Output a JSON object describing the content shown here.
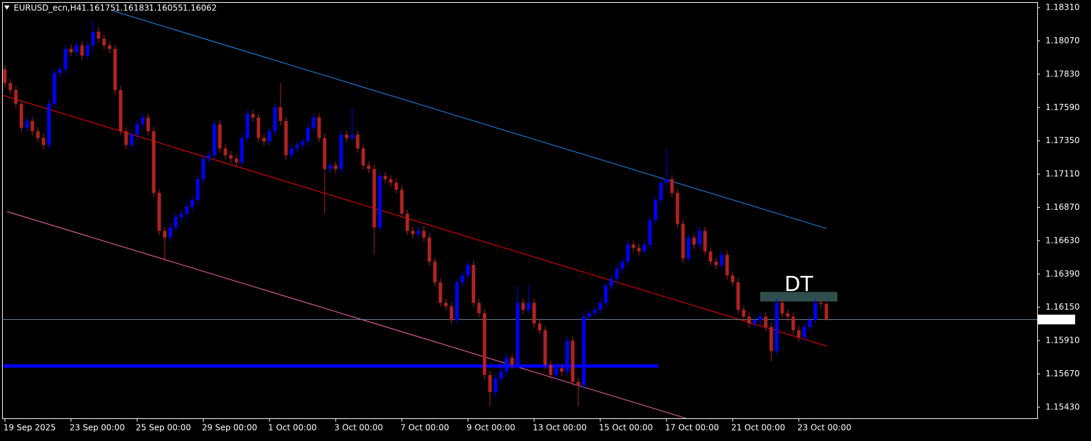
{
  "chart_data": {
    "type": "candlestick",
    "symbol": "EURUSD_ecn,H4",
    "up_color": "#0000ff",
    "down_color": "#b22222",
    "xlim": [
      -0.5,
      187.25
    ],
    "ylim": [
      1.1535,
      1.1835
    ],
    "xticks": [
      {
        "value": 0,
        "label": "19 Sep 2025"
      },
      {
        "value": 12,
        "label": "23 Sep 00:00"
      },
      {
        "value": 24,
        "label": "25 Sep 00:00"
      },
      {
        "value": 36,
        "label": "29 Sep 00:00"
      },
      {
        "value": 48,
        "label": "1 Oct 00:00"
      },
      {
        "value": 60,
        "label": "3 Oct 00:00"
      },
      {
        "value": 72,
        "label": "7 Oct 00:00"
      },
      {
        "value": 84,
        "label": "9 Oct 00:00"
      },
      {
        "value": 96,
        "label": "13 Oct 00:00"
      },
      {
        "value": 108,
        "label": "15 Oct 00:00"
      },
      {
        "value": 120,
        "label": "17 Oct 00:00"
      },
      {
        "value": 132,
        "label": "21 Oct 00:00"
      },
      {
        "value": 144,
        "label": "23 Oct 00:00"
      }
    ],
    "yticks": [
      {
        "value": 1.1831,
        "label": "1.18310"
      },
      {
        "value": 1.1807,
        "label": "1.18070"
      },
      {
        "value": 1.1783,
        "label": "1.17830"
      },
      {
        "value": 1.1759,
        "label": "1.17590"
      },
      {
        "value": 1.1735,
        "label": "1.17350"
      },
      {
        "value": 1.1711,
        "label": "1.17110"
      },
      {
        "value": 1.1687,
        "label": "1.16870"
      },
      {
        "value": 1.1663,
        "label": "1.16630"
      },
      {
        "value": 1.1639,
        "label": "1.16390"
      },
      {
        "value": 1.1615,
        "label": "1.16150"
      },
      {
        "value": 1.1591,
        "label": "1.15910"
      },
      {
        "value": 1.1567,
        "label": "1.15670"
      },
      {
        "value": 1.1543,
        "label": "1.15430"
      }
    ],
    "open": [
      1.17865,
      1.17766,
      1.17716,
      1.17617,
      1.17444,
      1.17493,
      1.17419,
      1.1737,
      1.1732,
      1.17617,
      1.1784,
      1.17865,
      1.18013,
      1.17988,
      1.18038,
      1.17964,
      1.18038,
      1.18137,
      1.18087,
      1.18038,
      1.18013,
      1.17716,
      1.17419,
      1.1732,
      1.17394,
      1.17469,
      1.17518,
      1.17419,
      1.16974,
      1.16701,
      1.16652,
      1.16726,
      1.168,
      1.16825,
      1.16875,
      1.16924,
      1.17073,
      1.17221,
      1.17246,
      1.17469,
      1.17295,
      1.17246,
      1.17221,
      1.17196,
      1.1737,
      1.17543,
      1.17518,
      1.1737,
      1.17345,
      1.17419,
      1.17592,
      1.17493,
      1.17246,
      1.17295,
      1.1732,
      1.17345,
      1.17444,
      1.17518,
      1.1737,
      1.17147,
      1.17172,
      1.17147,
      1.17394,
      1.1737,
      1.17394,
      1.17295,
      1.17172,
      1.17147,
      1.16726,
      1.17097,
      1.17073,
      1.17048,
      1.16998,
      1.16825,
      1.16701,
      1.16677,
      1.16701,
      1.16652,
      1.16479,
      1.1633,
      1.16182,
      1.16157,
      1.16058,
      1.1633,
      1.1638,
      1.16454,
      1.16182,
      1.16107,
      1.15662,
      1.15538,
      1.15637,
      1.15687,
      1.15786,
      1.15736,
      1.16182,
      1.16132,
      1.16182,
      1.16033,
      1.15984,
      1.15736,
      1.15662,
      1.15711,
      1.15687,
      1.15909,
      1.15612,
      1.15588,
      1.16083,
      1.16107,
      1.16132,
      1.16182,
      1.16305,
      1.16355,
      1.16429,
      1.16479,
      1.16602,
      1.16578,
      1.16553,
      1.16602,
      1.16776,
      1.16924,
      1.17048,
      1.17073,
      1.16974,
      1.16751,
      1.16503,
      1.16652,
      1.16602,
      1.16701,
      1.16553,
      1.16479,
      1.16454,
      1.16528,
      1.1638,
      1.1633,
      1.16132,
      1.16083,
      1.16033,
      1.16058,
      1.16083,
      1.16008,
      1.15835,
      1.16182,
      1.16107,
      1.16083,
      1.15984,
      1.15934,
      1.16008,
      1.16058,
      1.16182,
      1.16175
    ],
    "high": [
      1.17895,
      1.17796,
      1.17746,
      1.17647,
      1.17523,
      1.17523,
      1.17449,
      1.174,
      1.17647,
      1.1787,
      1.17895,
      1.18043,
      1.18043,
      1.18068,
      1.18068,
      1.18068,
      1.18211,
      1.18167,
      1.18117,
      1.18068,
      1.18043,
      1.17746,
      1.17449,
      1.17424,
      1.17499,
      1.17548,
      1.17548,
      1.17449,
      1.17004,
      1.16731,
      1.16756,
      1.1683,
      1.16855,
      1.16905,
      1.16954,
      1.17103,
      1.17251,
      1.17276,
      1.17499,
      1.17499,
      1.17325,
      1.17276,
      1.17251,
      1.174,
      1.17573,
      1.17573,
      1.17548,
      1.174,
      1.17449,
      1.17622,
      1.17766,
      1.17523,
      1.17325,
      1.1735,
      1.17375,
      1.17474,
      1.17548,
      1.17548,
      1.174,
      1.17202,
      1.17202,
      1.17424,
      1.17424,
      1.17592,
      1.17424,
      1.17325,
      1.17202,
      1.17177,
      1.17127,
      1.17127,
      1.17103,
      1.17078,
      1.17028,
      1.16855,
      1.16731,
      1.16731,
      1.16731,
      1.16682,
      1.16509,
      1.1636,
      1.16212,
      1.16187,
      1.1636,
      1.1641,
      1.16484,
      1.16484,
      1.16212,
      1.16137,
      1.15692,
      1.15667,
      1.15717,
      1.15816,
      1.15816,
      1.16305,
      1.16212,
      1.16305,
      1.16212,
      1.16063,
      1.16014,
      1.15766,
      1.15741,
      1.15741,
      1.15939,
      1.15939,
      1.15642,
      1.16113,
      1.16137,
      1.16162,
      1.16212,
      1.16335,
      1.16385,
      1.16459,
      1.16509,
      1.16632,
      1.16632,
      1.16608,
      1.16632,
      1.16806,
      1.16954,
      1.17078,
      1.17295,
      1.17103,
      1.17004,
      1.16781,
      1.16682,
      1.16682,
      1.16731,
      1.16731,
      1.16583,
      1.16509,
      1.16558,
      1.16558,
      1.1641,
      1.1636,
      1.16162,
      1.16113,
      1.16088,
      1.16113,
      1.16113,
      1.16038,
      1.16212,
      1.16212,
      1.16137,
      1.16113,
      1.16014,
      1.16038,
      1.16088,
      1.16212,
      1.16212,
      1.16183
    ],
    "low": [
      1.17736,
      1.17686,
      1.17587,
      1.17414,
      1.17414,
      1.17389,
      1.1734,
      1.1729,
      1.1729,
      1.17587,
      1.1781,
      1.17835,
      1.17958,
      1.17958,
      1.17934,
      1.17934,
      1.18008,
      1.18057,
      1.18008,
      1.17983,
      1.17686,
      1.17389,
      1.1729,
      1.1729,
      1.17364,
      1.17439,
      1.17389,
      1.16944,
      1.16671,
      1.16479,
      1.16622,
      1.16696,
      1.1677,
      1.16795,
      1.16845,
      1.16894,
      1.17043,
      1.17191,
      1.17216,
      1.17265,
      1.17216,
      1.17191,
      1.17166,
      1.17166,
      1.1734,
      1.17488,
      1.1734,
      1.17315,
      1.17315,
      1.17389,
      1.17463,
      1.17216,
      1.17216,
      1.17265,
      1.1729,
      1.17315,
      1.17414,
      1.1734,
      1.16825,
      1.17117,
      1.17117,
      1.17117,
      1.1734,
      1.1734,
      1.17265,
      1.17142,
      1.17117,
      1.16528,
      1.16696,
      1.17043,
      1.17018,
      1.16968,
      1.16795,
      1.16671,
      1.16647,
      1.16647,
      1.16622,
      1.16449,
      1.163,
      1.16152,
      1.16127,
      1.16028,
      1.16028,
      1.163,
      1.1635,
      1.16152,
      1.16077,
      1.15632,
      1.15436,
      1.15508,
      1.15607,
      1.15657,
      1.15706,
      1.15706,
      1.16102,
      1.16102,
      1.16003,
      1.15954,
      1.15706,
      1.15632,
      1.15632,
      1.15657,
      1.15657,
      1.15582,
      1.15436,
      1.15558,
      1.16053,
      1.16077,
      1.16102,
      1.16152,
      1.16275,
      1.16325,
      1.16399,
      1.16449,
      1.16548,
      1.16523,
      1.16523,
      1.16572,
      1.16746,
      1.16894,
      1.17018,
      1.16944,
      1.16721,
      1.16473,
      1.16473,
      1.16572,
      1.16572,
      1.16523,
      1.16449,
      1.16424,
      1.16424,
      1.1635,
      1.163,
      1.16102,
      1.16053,
      1.16003,
      1.16003,
      1.16028,
      1.15978,
      1.15761,
      1.15805,
      1.16077,
      1.16053,
      1.15954,
      1.15904,
      1.15904,
      1.15978,
      1.16028,
      1.16145,
      1.16055
    ],
    "close": [
      1.17766,
      1.17716,
      1.17617,
      1.17444,
      1.17493,
      1.17419,
      1.1737,
      1.1732,
      1.17617,
      1.1784,
      1.17865,
      1.18013,
      1.17988,
      1.18038,
      1.17964,
      1.18038,
      1.18137,
      1.18087,
      1.18038,
      1.18013,
      1.17716,
      1.17419,
      1.1732,
      1.17394,
      1.17469,
      1.17518,
      1.17419,
      1.16974,
      1.16701,
      1.16652,
      1.16726,
      1.168,
      1.16825,
      1.16875,
      1.16924,
      1.17073,
      1.17221,
      1.17246,
      1.17469,
      1.17295,
      1.17246,
      1.17221,
      1.17196,
      1.1737,
      1.17543,
      1.17518,
      1.1737,
      1.17345,
      1.17419,
      1.17592,
      1.17493,
      1.17246,
      1.17295,
      1.1732,
      1.17345,
      1.17444,
      1.17518,
      1.1737,
      1.17147,
      1.17172,
      1.17147,
      1.17394,
      1.1737,
      1.17394,
      1.17295,
      1.17172,
      1.17147,
      1.16726,
      1.17097,
      1.17073,
      1.17048,
      1.16998,
      1.16825,
      1.16701,
      1.16677,
      1.16701,
      1.16652,
      1.16479,
      1.1633,
      1.16182,
      1.16157,
      1.16058,
      1.1633,
      1.1638,
      1.16454,
      1.16182,
      1.16107,
      1.15662,
      1.15538,
      1.15637,
      1.15687,
      1.15786,
      1.15736,
      1.16182,
      1.16132,
      1.16182,
      1.16033,
      1.15984,
      1.15736,
      1.15662,
      1.15711,
      1.15687,
      1.15909,
      1.15612,
      1.15588,
      1.16083,
      1.16107,
      1.16132,
      1.16182,
      1.16305,
      1.16355,
      1.16429,
      1.16479,
      1.16602,
      1.16578,
      1.16553,
      1.16602,
      1.16776,
      1.16924,
      1.17048,
      1.17073,
      1.16974,
      1.16751,
      1.16503,
      1.16652,
      1.16602,
      1.16701,
      1.16553,
      1.16479,
      1.16454,
      1.16528,
      1.1638,
      1.1633,
      1.16132,
      1.16083,
      1.16033,
      1.16058,
      1.16083,
      1.16008,
      1.15835,
      1.16182,
      1.16107,
      1.16083,
      1.15984,
      1.15934,
      1.16008,
      1.16058,
      1.16182,
      1.16175,
      1.16062
    ],
    "trendlines": [
      {
        "color": "#1e90ff",
        "x": [
          19.75,
          149.1
        ],
        "y": [
          1.18285,
          1.16717
        ]
      },
      {
        "color": "#ff0000",
        "x": [
          -0.25,
          149.1
        ],
        "y": [
          1.17677,
          1.1587
        ]
      },
      {
        "color": "#ff69b4",
        "x": [
          0.4,
          123.5
        ],
        "y": [
          1.1684,
          1.15351
        ]
      }
    ],
    "level": {
      "color": "#0000ff",
      "x": [
        -0.25,
        118.5
      ],
      "y": 1.15727
    },
    "zone": {
      "label": "DT",
      "color": "#2f4f4f",
      "label_color": "#ffff00",
      "x": [
        137,
        151
      ],
      "y": [
        1.16192,
        1.16261
      ]
    },
    "price_line_color": "#778899"
  }
}
